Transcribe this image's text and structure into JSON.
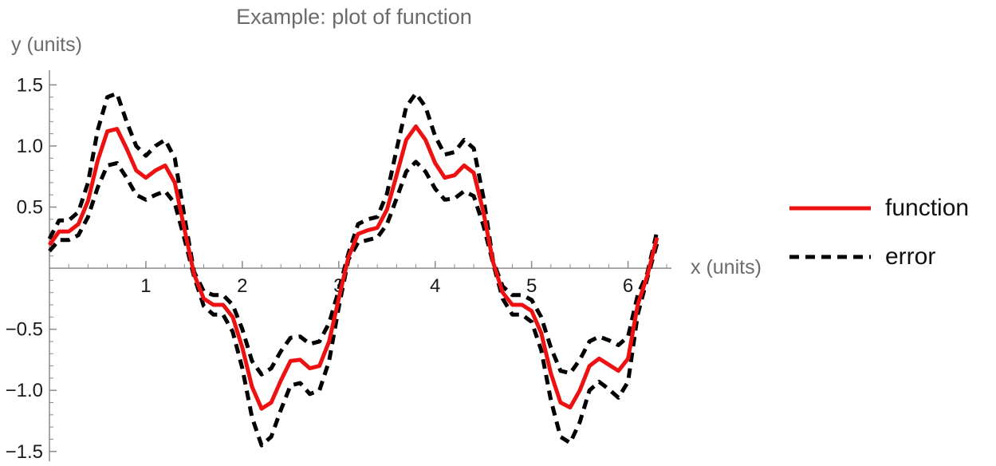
{
  "chart_data": {
    "type": "line",
    "title": "Example: plot of function",
    "xlabel": "x (units)",
    "ylabel": "y (units)",
    "xlim": [
      0,
      6.45
    ],
    "ylim": [
      -1.58,
      1.62
    ],
    "x_ticks": [
      1,
      2,
      3,
      4,
      5,
      6
    ],
    "x_tick_labels": [
      "1",
      "2",
      "3",
      "4",
      "5",
      "6"
    ],
    "y_ticks": [
      -1.5,
      -1.0,
      -0.5,
      0.5,
      1.0,
      1.5
    ],
    "y_tick_labels": [
      "−1.5",
      "−1.0",
      "−0.5",
      "0.5",
      "1.0",
      "1.5"
    ],
    "legend_position": "right",
    "series": [
      {
        "name": "function",
        "color": "#ee1111",
        "style": "solid",
        "x": [
          0.0,
          0.1,
          0.2,
          0.3,
          0.4,
          0.5,
          0.6,
          0.7,
          0.8,
          0.9,
          1.0,
          1.1,
          1.2,
          1.3,
          1.4,
          1.5,
          1.6,
          1.7,
          1.8,
          1.9,
          2.0,
          2.1,
          2.2,
          2.3,
          2.4,
          2.5,
          2.6,
          2.7,
          2.8,
          2.9,
          3.0,
          3.1,
          3.2,
          3.3,
          3.4,
          3.5,
          3.6,
          3.7,
          3.8,
          3.9,
          4.0,
          4.1,
          4.2,
          4.3,
          4.4,
          4.5,
          4.6,
          4.7,
          4.8,
          4.9,
          5.0,
          5.1,
          5.2,
          5.3,
          5.4,
          5.5,
          5.6,
          5.7,
          5.8,
          5.9,
          6.0,
          6.1,
          6.2,
          6.3
        ],
        "y": [
          0.19,
          0.3,
          0.3,
          0.36,
          0.55,
          0.88,
          1.12,
          1.14,
          0.98,
          0.8,
          0.74,
          0.8,
          0.84,
          0.7,
          0.32,
          -0.05,
          -0.25,
          -0.3,
          -0.3,
          -0.4,
          -0.65,
          -0.97,
          -1.15,
          -1.1,
          -0.92,
          -0.76,
          -0.75,
          -0.82,
          -0.8,
          -0.6,
          -0.25,
          0.09,
          0.28,
          0.31,
          0.33,
          0.48,
          0.76,
          1.05,
          1.16,
          1.05,
          0.86,
          0.74,
          0.76,
          0.84,
          0.78,
          0.46,
          0.05,
          -0.2,
          -0.3,
          -0.3,
          -0.35,
          -0.53,
          -0.86,
          -1.1,
          -1.14,
          -1.0,
          -0.8,
          -0.74,
          -0.79,
          -0.84,
          -0.74,
          -0.3,
          -0.06,
          0.25
        ]
      },
      {
        "name": "error",
        "color": "#000000",
        "style": "dashed",
        "x": [
          0.0,
          0.1,
          0.2,
          0.3,
          0.4,
          0.5,
          0.6,
          0.7,
          0.8,
          0.9,
          1.0,
          1.1,
          1.2,
          1.3,
          1.4,
          1.5,
          1.6,
          1.7,
          1.8,
          1.9,
          2.0,
          2.1,
          2.2,
          2.3,
          2.4,
          2.5,
          2.6,
          2.7,
          2.8,
          2.9,
          3.0,
          3.1,
          3.2,
          3.3,
          3.4,
          3.5,
          3.6,
          3.7,
          3.8,
          3.9,
          4.0,
          4.1,
          4.2,
          4.3,
          4.4,
          4.5,
          4.6,
          4.7,
          4.8,
          4.9,
          5.0,
          5.1,
          5.2,
          5.3,
          5.4,
          5.5,
          5.6,
          5.7,
          5.8,
          5.9,
          6.0,
          6.1,
          6.2,
          6.3
        ],
        "y_upper": [
          0.24,
          0.39,
          0.39,
          0.46,
          0.7,
          1.13,
          1.4,
          1.43,
          1.2,
          1.0,
          0.92,
          1.0,
          1.05,
          0.9,
          0.42,
          -0.03,
          -0.19,
          -0.22,
          -0.22,
          -0.3,
          -0.5,
          -0.76,
          -0.87,
          -0.82,
          -0.68,
          -0.57,
          -0.56,
          -0.62,
          -0.6,
          -0.45,
          -0.18,
          0.12,
          0.36,
          0.4,
          0.42,
          0.61,
          0.97,
          1.32,
          1.43,
          1.32,
          1.08,
          0.93,
          0.95,
          1.05,
          0.98,
          0.58,
          0.06,
          -0.15,
          -0.22,
          -0.22,
          -0.26,
          -0.4,
          -0.65,
          -0.84,
          -0.86,
          -0.75,
          -0.6,
          -0.56,
          -0.59,
          -0.63,
          -0.56,
          -0.22,
          -0.04,
          0.3
        ],
        "y_lower": [
          0.14,
          0.23,
          0.23,
          0.27,
          0.42,
          0.66,
          0.84,
          0.86,
          0.74,
          0.6,
          0.56,
          0.6,
          0.63,
          0.53,
          0.24,
          -0.07,
          -0.31,
          -0.38,
          -0.38,
          -0.52,
          -0.82,
          -1.22,
          -1.45,
          -1.38,
          -1.16,
          -0.96,
          -0.94,
          -1.03,
          -1.0,
          -0.76,
          -0.32,
          0.07,
          0.21,
          0.23,
          0.25,
          0.36,
          0.57,
          0.79,
          0.87,
          0.79,
          0.65,
          0.56,
          0.57,
          0.63,
          0.59,
          0.35,
          0.04,
          -0.25,
          -0.38,
          -0.38,
          -0.44,
          -0.67,
          -1.08,
          -1.38,
          -1.43,
          -1.26,
          -1.0,
          -0.93,
          -0.99,
          -1.06,
          -0.93,
          -0.38,
          -0.08,
          0.2
        ]
      }
    ]
  }
}
